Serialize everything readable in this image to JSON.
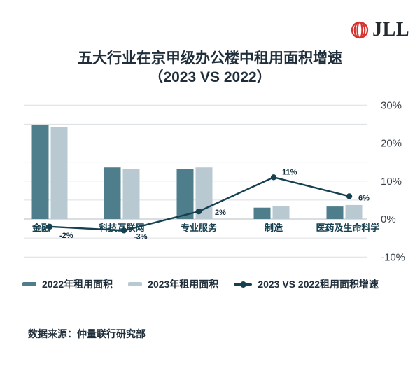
{
  "logo": {
    "text": "JLL",
    "icon_color": "#d7312e",
    "text_color": "#262b30"
  },
  "title": {
    "line1": "五大行业在京甲级办公楼中租用面积增速",
    "line2": "（2023 VS 2022）"
  },
  "legend": [
    {
      "label": "2022年租用面积",
      "type": "bar",
      "color": "#4e7d8b"
    },
    {
      "label": "2023年租用面积",
      "type": "bar",
      "color": "#b9c9d1"
    },
    {
      "label": "2023 VS 2022租用面积增速",
      "type": "line",
      "color": "#16404f"
    }
  ],
  "footer": {
    "source": "数据来源：仲量联行研究部"
  },
  "chart_data": {
    "type": "bar",
    "subtype": "grouped bars with overlay line (combo chart)",
    "title": "五大行业在京甲级办公楼中租用面积增速（2023 VS 2022）",
    "categories": [
      "金融",
      "科技互联网",
      "专业服务",
      "制造",
      "医药及生命科学"
    ],
    "series": [
      {
        "name": "2022年租用面积",
        "type": "bar",
        "color": "#4e7d8b",
        "values": [
          24.7,
          13.6,
          13.2,
          3.0,
          3.3
        ]
      },
      {
        "name": "2023年租用面积",
        "type": "bar",
        "color": "#b9c9d1",
        "values": [
          24.2,
          13.1,
          13.6,
          3.5,
          3.7
        ]
      },
      {
        "name": "2023 VS 2022租用面积增速",
        "type": "line",
        "color": "#16404f",
        "values": [
          -2,
          -3,
          2,
          11,
          6
        ],
        "labels": [
          "-2%",
          "-3%",
          "2%",
          "11%",
          "6%"
        ]
      }
    ],
    "xlabel": "",
    "ylabel": "",
    "ylim": [
      -10,
      30
    ],
    "y_axis": {
      "side": "right",
      "unit": "%",
      "grid_step": 5,
      "tick_values": [
        30,
        20,
        10,
        0,
        -10
      ],
      "tick_labels": [
        "30%",
        "20%",
        "10%",
        "0%",
        "-10%"
      ]
    },
    "grid": true,
    "legend_position": "bottom",
    "source": "数据来源：仲量联行研究部"
  }
}
